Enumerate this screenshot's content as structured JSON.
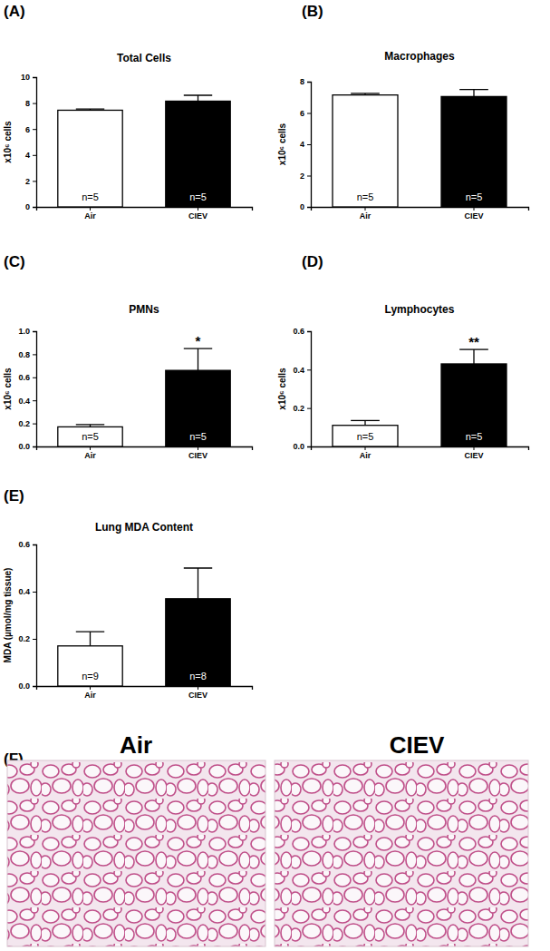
{
  "chart_data": [
    {
      "type": "bar",
      "panel_label": "(A)",
      "title": "Total Cells",
      "y_label": "x10⁶ cells",
      "categories": [
        "Air",
        "CIEV"
      ],
      "values": [
        7.45,
        8.15
      ],
      "errors": [
        0.1,
        0.45
      ],
      "colors": [
        "#ffffff",
        "#000000"
      ],
      "n_labels": [
        "n=5",
        "n=5"
      ],
      "ylim": [
        0,
        10
      ],
      "yticks": [
        0,
        2,
        4,
        6,
        8,
        10
      ]
    },
    {
      "type": "bar",
      "panel_label": "(B)",
      "title": "Macrophages",
      "y_label": "x10⁶ cells",
      "categories": [
        "Air",
        "CIEV"
      ],
      "values": [
        7.15,
        7.05
      ],
      "errors": [
        0.1,
        0.45
      ],
      "colors": [
        "#ffffff",
        "#000000"
      ],
      "n_labels": [
        "n=5",
        "n=5"
      ],
      "ylim": [
        0,
        8
      ],
      "yticks": [
        0,
        2,
        4,
        6,
        8
      ]
    },
    {
      "type": "bar",
      "panel_label": "(C)",
      "title": "PMNs",
      "y_label": "x10⁶ cells",
      "categories": [
        "Air",
        "CIEV"
      ],
      "values": [
        0.17,
        0.66
      ],
      "errors": [
        0.02,
        0.19
      ],
      "colors": [
        "#ffffff",
        "#000000"
      ],
      "n_labels": [
        "n=5",
        "n=5"
      ],
      "annotations": [
        {
          "category": "CIEV",
          "text": "*"
        }
      ],
      "ylim": [
        0,
        1.0
      ],
      "yticks": [
        {
          "value": 0,
          "label": "0.0"
        },
        0.2,
        0.4,
        0.6,
        0.8,
        {
          "value": 1,
          "label": "1.0"
        }
      ]
    },
    {
      "type": "bar",
      "panel_label": "(D)",
      "title": "Lymphocytes",
      "y_label": "x10⁶ cells",
      "categories": [
        "Air",
        "CIEV"
      ],
      "values": [
        0.11,
        0.43
      ],
      "errors": [
        0.025,
        0.075
      ],
      "colors": [
        "#ffffff",
        "#000000"
      ],
      "n_labels": [
        "n=5",
        "n=5"
      ],
      "annotations": [
        {
          "category": "CIEV",
          "text": "**"
        }
      ],
      "ylim": [
        0,
        0.6
      ],
      "yticks": [
        {
          "value": 0,
          "label": "0.0"
        },
        0.2,
        0.4,
        0.6
      ]
    },
    {
      "type": "bar",
      "panel_label": "(E)",
      "title": "Lung MDA Content",
      "y_label": "MDA (µmol/mg tissue)",
      "categories": [
        "Air",
        "CIEV"
      ],
      "values": [
        0.17,
        0.37
      ],
      "errors": [
        0.06,
        0.13
      ],
      "colors": [
        "#ffffff",
        "#000000"
      ],
      "n_labels": [
        "n=9",
        "n=8"
      ],
      "ylim": [
        0,
        0.6
      ],
      "yticks": [
        {
          "value": 0,
          "label": "0.0"
        },
        0.2,
        0.4,
        0.6
      ]
    }
  ],
  "figure": {
    "panel_label": "(F)",
    "images": [
      "Air",
      "CIEV"
    ]
  }
}
